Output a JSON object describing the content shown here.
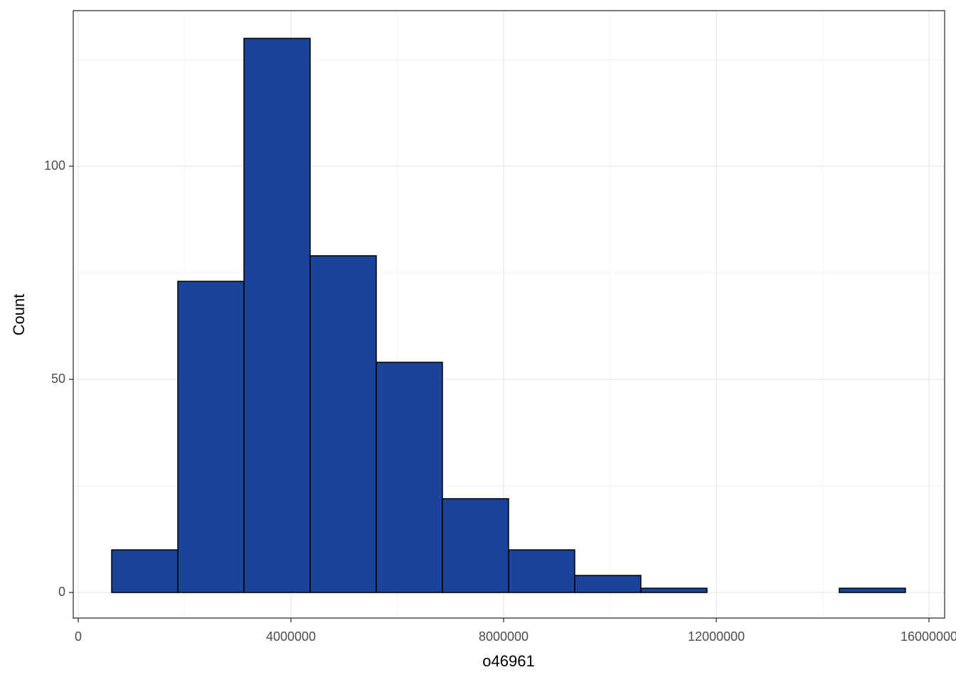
{
  "chart_data": {
    "type": "histogram",
    "xlabel": "o46961",
    "ylabel": "Count",
    "bins": [
      629000,
      1873000,
      3117000,
      4361000,
      5605000,
      6849000,
      8093000,
      9337000,
      10581000,
      11825000,
      13069000,
      14313000,
      15557000
    ],
    "counts": [
      10,
      73,
      130,
      79,
      54,
      22,
      10,
      4,
      1,
      0,
      0,
      1
    ],
    "color": "#19449a",
    "edgecolor": "#000000",
    "xlim": [
      -93600,
      16294000
    ],
    "xticks": [
      0,
      4000000,
      8000000,
      12000000,
      16000000
    ],
    "xminor_ticks": [
      2000000,
      6000000,
      10000000,
      14000000
    ],
    "ylim": [
      -6,
      136.5
    ],
    "yticks": [
      0,
      50,
      100
    ],
    "yminor_ticks": [
      25,
      75,
      125
    ],
    "grid": true
  }
}
